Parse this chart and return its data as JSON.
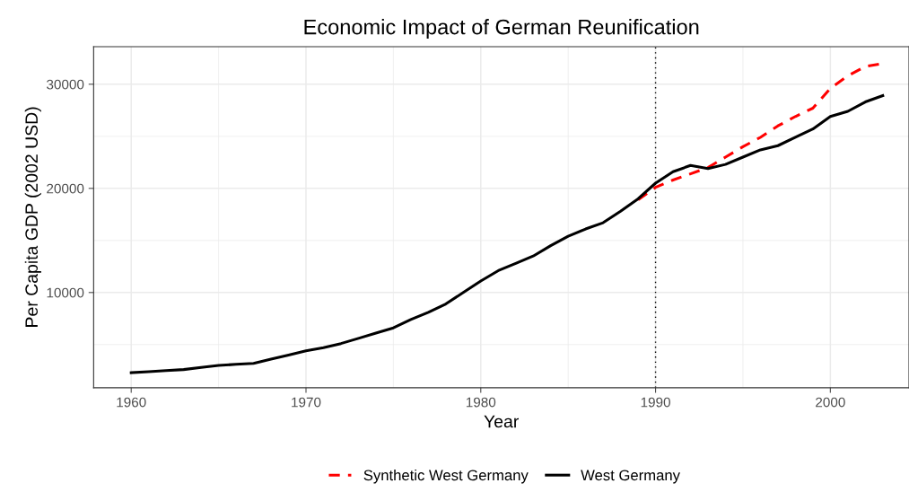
{
  "chart_data": {
    "type": "line",
    "title": "Economic Impact of German Reunification",
    "xlabel": "Year",
    "ylabel": "Per Capita GDP (2002 USD)",
    "x": [
      1960,
      1961,
      1962,
      1963,
      1964,
      1965,
      1966,
      1967,
      1968,
      1969,
      1970,
      1971,
      1972,
      1973,
      1974,
      1975,
      1976,
      1977,
      1978,
      1979,
      1980,
      1981,
      1982,
      1983,
      1984,
      1985,
      1986,
      1987,
      1988,
      1989,
      1990,
      1991,
      1992,
      1993,
      1994,
      1995,
      1996,
      1997,
      1998,
      1999,
      2000,
      2001,
      2002,
      2003
    ],
    "series": [
      {
        "name": "Synthetic West Germany",
        "color": "#ff0000",
        "line_style": "dashed",
        "values": [
          null,
          null,
          null,
          null,
          null,
          null,
          null,
          null,
          null,
          null,
          null,
          null,
          null,
          null,
          null,
          null,
          null,
          null,
          null,
          null,
          null,
          null,
          null,
          null,
          null,
          null,
          null,
          null,
          null,
          18900,
          20100,
          20800,
          21400,
          22000,
          23000,
          24000,
          24900,
          26000,
          26900,
          27700,
          29600,
          30800,
          31700,
          32000
        ]
      },
      {
        "name": "West Germany",
        "color": "#000000",
        "line_style": "solid",
        "values": [
          2300,
          2400,
          2500,
          2600,
          2800,
          3000,
          3100,
          3200,
          3600,
          4000,
          4400,
          4700,
          5100,
          5600,
          6100,
          6600,
          7400,
          8100,
          8900,
          10000,
          11100,
          12100,
          12800,
          13500,
          14500,
          15400,
          16100,
          16700,
          17800,
          19000,
          20500,
          21600,
          22200,
          21900,
          22300,
          23000,
          23700,
          24100,
          24900,
          25700,
          26900,
          27400,
          28300,
          28900
        ]
      }
    ],
    "xlim": [
      1957.85,
      2004.5
    ],
    "ylim": [
      860,
      33600
    ],
    "xticks": [
      1960,
      1970,
      1980,
      1990,
      2000
    ],
    "yticks": [
      10000,
      20000,
      30000
    ],
    "ref_lines": [
      {
        "axis": "x",
        "value": 1990,
        "color": "#000000",
        "line_style": "dotted"
      }
    ],
    "grid": true,
    "legend": "bottom"
  }
}
